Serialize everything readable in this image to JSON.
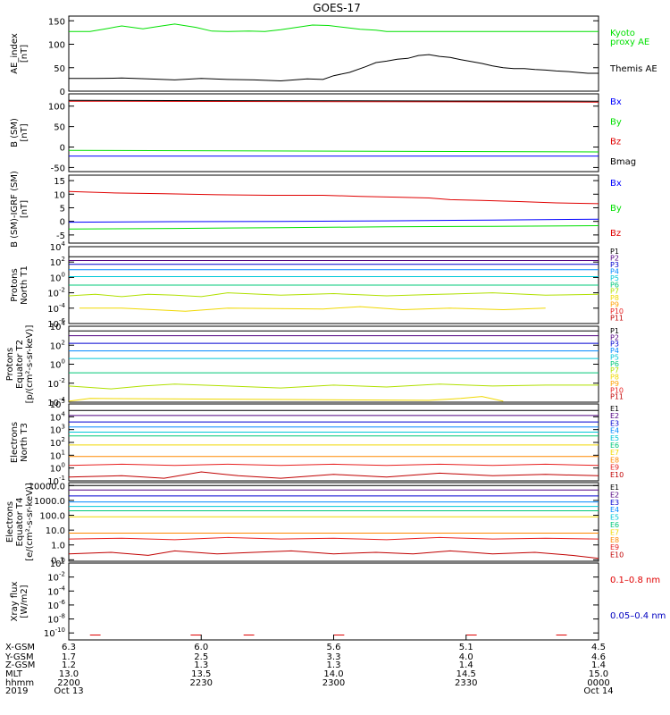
{
  "title": "GOES-17",
  "colors": {
    "black": "#000000",
    "green": "#00e000",
    "blue": "#0000ff",
    "red": "#e00000",
    "p_colors": [
      "#000000",
      "#500080",
      "#0000d0",
      "#0088ff",
      "#00c8d8",
      "#00c878",
      "#b0e000",
      "#f0d800",
      "#ffa000",
      "#e82020",
      "#c00000"
    ],
    "e_colors": [
      "#000000",
      "#500080",
      "#0000d0",
      "#0088ff",
      "#00c8d8",
      "#00c878",
      "#f0d800",
      "#ff8800",
      "#e82020",
      "#c00000"
    ]
  },
  "chart_data": [
    {
      "id": "ae",
      "type": "line",
      "ylabel": "AE_index\n[nT]",
      "yticks": [
        "150",
        "100",
        "50",
        "0"
      ],
      "ylim": [
        0,
        160
      ],
      "series": [
        {
          "name": "Kyoto proxy AE",
          "color": "#00e000",
          "x": [
            0,
            4,
            7,
            10,
            14,
            17,
            20,
            24,
            27,
            30,
            34,
            37,
            40,
            43,
            46,
            49,
            52,
            55,
            58,
            60,
            64,
            70,
            80,
            90,
            100
          ],
          "y": [
            127,
            127,
            133,
            139,
            133,
            138,
            143,
            136,
            128,
            127,
            128,
            127,
            131,
            136,
            141,
            140,
            136,
            132,
            130,
            127,
            127,
            127,
            127,
            127,
            127
          ]
        },
        {
          "name": "Themis AE",
          "color": "#000000",
          "x": [
            0,
            5,
            10,
            15,
            20,
            25,
            30,
            35,
            40,
            45,
            48,
            50,
            53,
            56,
            58,
            60,
            62,
            64,
            66,
            68,
            70,
            72,
            74,
            76,
            78,
            80,
            82,
            84,
            86,
            88,
            90,
            92,
            94,
            96,
            98,
            100
          ],
          "y": [
            27,
            27,
            28,
            26,
            24,
            27,
            25,
            24,
            22,
            26,
            25,
            33,
            40,
            52,
            61,
            64,
            68,
            70,
            76,
            78,
            74,
            72,
            67,
            63,
            59,
            54,
            50,
            48,
            48,
            46,
            45,
            43,
            42,
            40,
            38,
            38
          ]
        }
      ],
      "legend": [
        {
          "text": "Kyoto",
          "color": "#00e000"
        },
        {
          "text": "proxy AE",
          "color": "#00e000"
        },
        {
          "text": "Themis AE",
          "color": "#000000"
        }
      ]
    },
    {
      "id": "bsm",
      "type": "line",
      "ylabel": "B (SM)\n[nT]",
      "yticks": [
        "100",
        "50",
        "0",
        "-50"
      ],
      "ylim": [
        -60,
        130
      ],
      "series": [
        {
          "name": "Bx",
          "color": "#0000ff",
          "x": [
            0,
            100
          ],
          "y": [
            -22,
            -22
          ]
        },
        {
          "name": "By",
          "color": "#00e000",
          "x": [
            0,
            100
          ],
          "y": [
            -8,
            -12
          ]
        },
        {
          "name": "Bz",
          "color": "#e00000",
          "x": [
            0,
            100
          ],
          "y": [
            112,
            110
          ]
        },
        {
          "name": "Bmag",
          "color": "#000000",
          "x": [
            0,
            100
          ],
          "y": [
            114,
            112
          ]
        }
      ],
      "legend": [
        {
          "text": "Bx",
          "color": "#0000ff"
        },
        {
          "text": "By",
          "color": "#00e000"
        },
        {
          "text": "Bz",
          "color": "#e00000"
        },
        {
          "text": "Bmag",
          "color": "#000000"
        }
      ]
    },
    {
      "id": "bdiff",
      "type": "line",
      "ylabel": "B (SM)-IGRF (SM)\n[nT]",
      "yticks": [
        "15",
        "10",
        "5",
        "0",
        "-5"
      ],
      "ylim": [
        -8,
        17
      ],
      "series": [
        {
          "name": "Bx",
          "color": "#0000ff",
          "x": [
            0,
            20,
            40,
            60,
            80,
            100
          ],
          "y": [
            -0.3,
            -0.1,
            0,
            0.2,
            0.5,
            0.8
          ]
        },
        {
          "name": "By",
          "color": "#00e000",
          "x": [
            0,
            20,
            40,
            60,
            80,
            100
          ],
          "y": [
            -2.8,
            -2.6,
            -2.3,
            -2.0,
            -1.8,
            -1.6
          ]
        },
        {
          "name": "Bz",
          "color": "#e00000",
          "x": [
            0,
            8,
            18,
            28,
            38,
            48,
            55,
            62,
            68,
            72,
            78,
            85,
            92,
            100
          ],
          "y": [
            11.0,
            10.5,
            10.2,
            9.8,
            9.6,
            9.6,
            9.2,
            8.9,
            8.6,
            8.0,
            7.7,
            7.3,
            6.8,
            6.5
          ]
        }
      ],
      "legend": [
        {
          "text": "Bx",
          "color": "#0000ff"
        },
        {
          "text": "By",
          "color": "#00e000"
        },
        {
          "text": "Bz",
          "color": "#e00000"
        }
      ]
    },
    {
      "id": "protons_t1",
      "type": "line",
      "ylabel": "Protons\nNorth T1",
      "ylog": [
        -6,
        4
      ],
      "yticks": [
        "4",
        "2",
        "0",
        "-2",
        "-4",
        "-6"
      ],
      "series": [
        {
          "name": "P1",
          "color": "#000000",
          "x": [
            0,
            100
          ],
          "y": [
            2.7,
            2.7
          ]
        },
        {
          "name": "P2",
          "color": "#500080",
          "x": [
            0,
            100
          ],
          "y": [
            2.2,
            2.2
          ]
        },
        {
          "name": "P3",
          "color": "#0000d0",
          "x": [
            0,
            100
          ],
          "y": [
            1.7,
            1.7
          ]
        },
        {
          "name": "P4",
          "color": "#0088ff",
          "x": [
            0,
            100
          ],
          "y": [
            1.0,
            1.0
          ]
        },
        {
          "name": "P5",
          "color": "#00c8d8",
          "x": [
            0,
            100
          ],
          "y": [
            0.1,
            0.1
          ]
        },
        {
          "name": "P6",
          "color": "#00c878",
          "x": [
            0,
            100
          ],
          "y": [
            -1.0,
            -1.0
          ]
        },
        {
          "name": "P7",
          "color": "#b0e000",
          "x": [
            0,
            5,
            10,
            15,
            20,
            25,
            30,
            40,
            50,
            60,
            70,
            80,
            90,
            100
          ],
          "y": [
            -2.4,
            -2.2,
            -2.5,
            -2.2,
            -2.3,
            -2.5,
            -2.0,
            -2.3,
            -2.1,
            -2.4,
            -2.2,
            -2.0,
            -2.3,
            -2.2
          ]
        },
        {
          "name": "P8",
          "color": "#f0d800",
          "x": [
            2,
            10,
            22,
            30,
            48,
            55,
            63,
            72,
            82,
            90
          ],
          "y": [
            -4.0,
            -4.0,
            -4.4,
            -4.0,
            -4.1,
            -3.8,
            -4.2,
            -4.0,
            -4.2,
            -4.0
          ]
        }
      ],
      "legend": [
        "P1",
        "P2",
        "P3",
        "P4",
        "P5",
        "P6",
        "P7",
        "P8",
        "P9",
        "P10",
        "P11"
      ]
    },
    {
      "id": "protons_t2",
      "type": "line",
      "ylabel": "Protons\nEquator T2\n[p/(cm²-s-sr-keV)]",
      "ylog": [
        -4,
        4
      ],
      "yticks": [
        "4",
        "2",
        "0",
        "-2",
        "-4"
      ],
      "series": [
        {
          "name": "P1",
          "color": "#000000",
          "x": [
            0,
            100
          ],
          "y": [
            3.5,
            3.5
          ]
        },
        {
          "name": "P2",
          "color": "#500080",
          "x": [
            0,
            100
          ],
          "y": [
            3.0,
            3.0
          ]
        },
        {
          "name": "P3",
          "color": "#0000d0",
          "x": [
            0,
            100
          ],
          "y": [
            2.2,
            2.2
          ]
        },
        {
          "name": "P4",
          "color": "#0088ff",
          "x": [
            0,
            100
          ],
          "y": [
            1.4,
            1.4
          ]
        },
        {
          "name": "P5",
          "color": "#00c8d8",
          "x": [
            0,
            100
          ],
          "y": [
            0.6,
            0.6
          ]
        },
        {
          "name": "P6",
          "color": "#00c878",
          "x": [
            0,
            100
          ],
          "y": [
            -0.9,
            -0.9
          ]
        },
        {
          "name": "P7",
          "color": "#b0e000",
          "x": [
            0,
            8,
            14,
            20,
            30,
            40,
            50,
            60,
            70,
            80,
            90,
            100
          ],
          "y": [
            -2.3,
            -2.6,
            -2.3,
            -2.1,
            -2.3,
            -2.5,
            -2.2,
            -2.4,
            -2.1,
            -2.3,
            -2.2,
            -2.2
          ]
        },
        {
          "name": "P8",
          "color": "#f0d800",
          "x": [
            0,
            4,
            68,
            74,
            78,
            82
          ],
          "y": [
            -3.9,
            -3.6,
            -3.8,
            -3.6,
            -3.4,
            -3.9
          ]
        }
      ],
      "legend": [
        "P1",
        "P2",
        "P3",
        "P4",
        "P5",
        "P6",
        "P7",
        "P8",
        "P9",
        "P10",
        "P11"
      ]
    },
    {
      "id": "electrons_t3",
      "type": "line",
      "ylabel": "Electrons\nNorth T3",
      "ylog": [
        -1,
        5
      ],
      "yticks": [
        "5",
        "4",
        "3",
        "2",
        "1",
        "0",
        "-1"
      ],
      "series": [
        {
          "name": "E1",
          "color": "#000000",
          "x": [
            0,
            100
          ],
          "y": [
            4.5,
            4.5
          ]
        },
        {
          "name": "E2",
          "color": "#500080",
          "x": [
            0,
            100
          ],
          "y": [
            4.1,
            4.1
          ]
        },
        {
          "name": "E3",
          "color": "#0000d0",
          "x": [
            0,
            100
          ],
          "y": [
            3.6,
            3.6
          ]
        },
        {
          "name": "E4",
          "color": "#0088ff",
          "x": [
            0,
            100
          ],
          "y": [
            3.2,
            3.2
          ]
        },
        {
          "name": "E5",
          "color": "#00c8d8",
          "x": [
            0,
            100
          ],
          "y": [
            2.8,
            2.8
          ]
        },
        {
          "name": "E6",
          "color": "#00c878",
          "x": [
            0,
            100
          ],
          "y": [
            2.5,
            2.5
          ]
        },
        {
          "name": "E7",
          "color": "#f0d800",
          "x": [
            0,
            100
          ],
          "y": [
            1.8,
            1.8
          ]
        },
        {
          "name": "E8",
          "color": "#ff8800",
          "x": [
            0,
            100
          ],
          "y": [
            0.9,
            0.9
          ]
        },
        {
          "name": "E9",
          "color": "#e82020",
          "x": [
            0,
            10,
            20,
            30,
            40,
            50,
            60,
            70,
            80,
            90,
            100
          ],
          "y": [
            0.2,
            0.3,
            0.2,
            0.3,
            0.2,
            0.3,
            0.2,
            0.3,
            0.2,
            0.3,
            0.2
          ]
        },
        {
          "name": "E10",
          "color": "#c00000",
          "x": [
            0,
            10,
            18,
            25,
            32,
            40,
            50,
            60,
            70,
            80,
            90,
            100
          ],
          "y": [
            -0.7,
            -0.6,
            -0.8,
            -0.3,
            -0.6,
            -0.8,
            -0.5,
            -0.7,
            -0.4,
            -0.6,
            -0.5,
            -0.6
          ]
        }
      ],
      "legend": [
        "E1",
        "E2",
        "E3",
        "E4",
        "E5",
        "E6",
        "E7",
        "E8",
        "E9",
        "E10"
      ]
    },
    {
      "id": "electrons_t4",
      "type": "line",
      "ylabel": "Electrons\nEquator T4\n[e/(cm²-s-sr-keV)]",
      "ylog": [
        -1.1,
        4.2
      ],
      "yticks": [
        "10000.0",
        "1000.0",
        "100.0",
        "10.0",
        "1.0",
        "0.1"
      ],
      "series": [
        {
          "name": "E1",
          "color": "#000000",
          "x": [
            0,
            100
          ],
          "y": [
            4.0,
            4.0
          ]
        },
        {
          "name": "E2",
          "color": "#500080",
          "x": [
            0,
            100
          ],
          "y": [
            3.7,
            3.7
          ]
        },
        {
          "name": "E3",
          "color": "#0000d0",
          "x": [
            0,
            100
          ],
          "y": [
            3.3,
            3.3
          ]
        },
        {
          "name": "E4",
          "color": "#0088ff",
          "x": [
            0,
            100
          ],
          "y": [
            2.9,
            2.9
          ]
        },
        {
          "name": "E5",
          "color": "#00c8d8",
          "x": [
            0,
            100
          ],
          "y": [
            2.6,
            2.6
          ]
        },
        {
          "name": "E6",
          "color": "#00c878",
          "x": [
            0,
            100
          ],
          "y": [
            2.3,
            2.3
          ]
        },
        {
          "name": "E7",
          "color": "#f0d800",
          "x": [
            0,
            100
          ],
          "y": [
            1.9,
            1.9
          ]
        },
        {
          "name": "E8",
          "color": "#ff8800",
          "x": [
            0,
            100
          ],
          "y": [
            0.8,
            0.8
          ]
        },
        {
          "name": "E9",
          "color": "#e82020",
          "x": [
            0,
            10,
            20,
            30,
            40,
            50,
            60,
            70,
            80,
            90,
            100
          ],
          "y": [
            0.4,
            0.45,
            0.35,
            0.5,
            0.4,
            0.45,
            0.35,
            0.5,
            0.4,
            0.45,
            0.4
          ]
        },
        {
          "name": "E10",
          "color": "#c00000",
          "x": [
            0,
            8,
            15,
            20,
            28,
            35,
            42,
            50,
            58,
            65,
            72,
            80,
            88,
            95,
            100
          ],
          "y": [
            -0.6,
            -0.5,
            -0.7,
            -0.4,
            -0.6,
            -0.5,
            -0.4,
            -0.6,
            -0.5,
            -0.6,
            -0.4,
            -0.6,
            -0.5,
            -0.7,
            -0.9
          ]
        }
      ],
      "legend": [
        "E1",
        "E2",
        "E3",
        "E4",
        "E5",
        "E6",
        "E7",
        "E8",
        "E9",
        "E10"
      ]
    },
    {
      "id": "xray",
      "type": "line",
      "ylabel": "Xray  flux\n[W/m2]",
      "ylog": [
        -11,
        0
      ],
      "yticks": [
        "0",
        "-2",
        "-4",
        "-6",
        "-8",
        "-10"
      ],
      "series": [
        {
          "name": "0.1-0.8 nm",
          "color": "#e00000",
          "dashes": [
            [
              4,
              6
            ],
            [
              23,
              25
            ],
            [
              33,
              35
            ],
            [
              50,
              52
            ],
            [
              75,
              77
            ],
            [
              92,
              94
            ]
          ],
          "y": -10.3
        }
      ],
      "legend": [
        {
          "text": "0.1–0.8 nm",
          "color": "#e00000"
        },
        {
          "text": "0.05–0.4 nm",
          "color": "#0000c0"
        }
      ]
    }
  ],
  "xaxis": {
    "row_labels": [
      "X-GSM",
      "Y-GSM",
      "Z-GSM",
      "MLT",
      "hhmm",
      "2019"
    ],
    "ticks": [
      {
        "x": 0,
        "values": [
          "6.3",
          "1.7",
          "1.2",
          "13.0",
          "2200",
          "Oct 13"
        ]
      },
      {
        "x": 25,
        "values": [
          "6.0",
          "2.5",
          "1.3",
          "13.5",
          "2230",
          ""
        ]
      },
      {
        "x": 50,
        "values": [
          "5.6",
          "3.3",
          "1.3",
          "14.0",
          "2300",
          ""
        ]
      },
      {
        "x": 75,
        "values": [
          "5.1",
          "4.0",
          "1.4",
          "14.5",
          "2330",
          ""
        ]
      },
      {
        "x": 100,
        "values": [
          "4.5",
          "4.6",
          "1.4",
          "15.0",
          "0000",
          "Oct 14"
        ]
      }
    ]
  }
}
